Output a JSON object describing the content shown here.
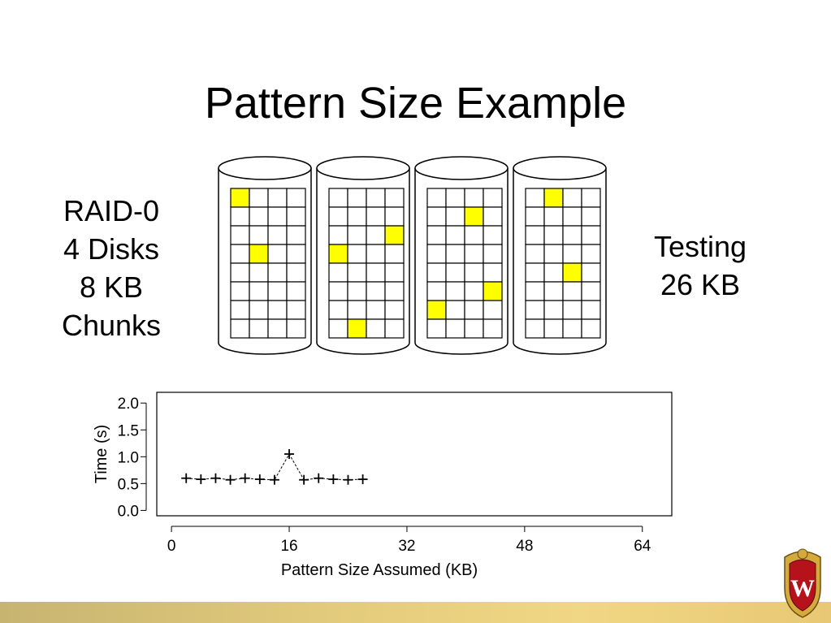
{
  "slide": {
    "title": "Pattern Size Example",
    "left_caption": [
      "RAID-0",
      "4 Disks",
      "8 KB",
      "Chunks"
    ],
    "right_caption": [
      "Testing",
      "26 KB"
    ]
  },
  "diagram": {
    "disk_count": 4,
    "grid_columns": 4,
    "grid_rows": 8,
    "highlight_color": "#ffff00",
    "highlighted_cells": [
      [
        [
          0,
          0
        ],
        [
          3,
          1
        ]
      ],
      [
        [
          2,
          3
        ],
        [
          3,
          0
        ],
        [
          7,
          1
        ]
      ],
      [
        [
          1,
          2
        ],
        [
          5,
          3
        ],
        [
          6,
          0
        ]
      ],
      [
        [
          0,
          1
        ],
        [
          4,
          2
        ]
      ]
    ]
  },
  "chart_data": {
    "type": "line",
    "xlabel": "Pattern Size Assumed (KB)",
    "ylabel": "Time (s)",
    "xlim": [
      -2,
      68
    ],
    "ylim": [
      -0.1,
      2.2
    ],
    "x_ticks": [
      0,
      16,
      32,
      48,
      64
    ],
    "x_tick_labels": [
      "0",
      "16",
      "32",
      "48",
      "64"
    ],
    "y_ticks": [
      0.0,
      0.5,
      1.0,
      1.5,
      2.0
    ],
    "y_tick_labels": [
      "0.0",
      "0.5",
      "1.0",
      "1.5",
      "2.0"
    ],
    "grid": false,
    "series": [
      {
        "marker": "plus",
        "x": [
          2,
          4,
          6,
          8,
          10,
          12,
          14,
          16,
          18,
          20,
          22,
          24,
          26
        ],
        "y": [
          0.6,
          0.58,
          0.6,
          0.57,
          0.6,
          0.58,
          0.57,
          1.05,
          0.57,
          0.6,
          0.58,
          0.57,
          0.58
        ]
      }
    ]
  },
  "crest": {
    "letter": "W",
    "color": "#b5121b",
    "gold": "#d4aa3c"
  }
}
